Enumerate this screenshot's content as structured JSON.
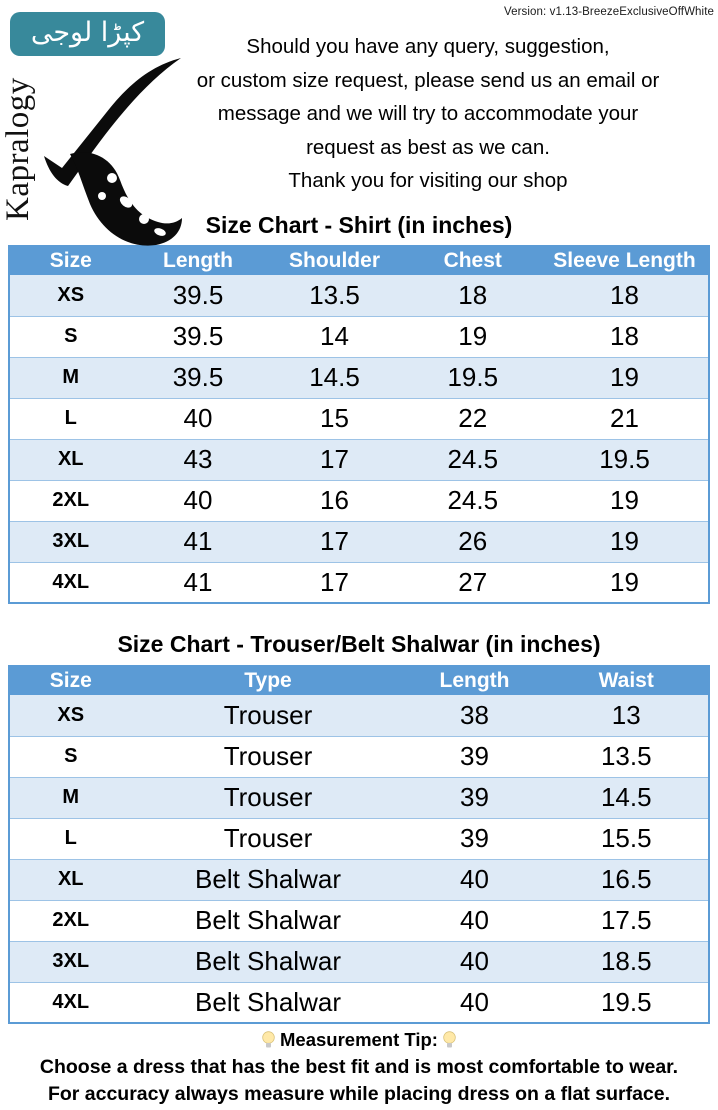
{
  "badge": {
    "urdu_text": "کپڑا لوجی"
  },
  "version_text": "Version: v1.13-BreezeExclusiveOffWhite",
  "brand": {
    "name": "Kapralogy"
  },
  "intro_lines": [
    "Should you have any query, suggestion,",
    "or custom size request, please send us an email or",
    "message and we will try to accommodate your",
    "request as best as we can.",
    "Thank you for visiting our shop"
  ],
  "shirt_chart": {
    "title": "Size Chart - Shirt (in inches)",
    "columns": [
      "Size",
      "Length",
      "Shoulder",
      "Chest",
      "Sleeve Length"
    ],
    "rows": [
      [
        "XS",
        "39.5",
        "13.5",
        "18",
        "18"
      ],
      [
        "S",
        "39.5",
        "14",
        "19",
        "18"
      ],
      [
        "M",
        "39.5",
        "14.5",
        "19.5",
        "19"
      ],
      [
        "L",
        "40",
        "15",
        "22",
        "21"
      ],
      [
        "XL",
        "43",
        "17",
        "24.5",
        "19.5"
      ],
      [
        "2XL",
        "40",
        "16",
        "24.5",
        "19"
      ],
      [
        "3XL",
        "41",
        "17",
        "26",
        "19"
      ],
      [
        "4XL",
        "41",
        "17",
        "27",
        "19"
      ]
    ]
  },
  "trouser_chart": {
    "title": "Size Chart - Trouser/Belt Shalwar (in inches)",
    "columns": [
      "Size",
      "Type",
      "Length",
      "Waist"
    ],
    "rows": [
      [
        "XS",
        "Trouser",
        "38",
        "13"
      ],
      [
        "S",
        "Trouser",
        "39",
        "13.5"
      ],
      [
        "M",
        "Trouser",
        "39",
        "14.5"
      ],
      [
        "L",
        "Trouser",
        "39",
        "15.5"
      ],
      [
        "XL",
        "Belt Shalwar",
        "40",
        "16.5"
      ],
      [
        "2XL",
        "Belt Shalwar",
        "40",
        "17.5"
      ],
      [
        "3XL",
        "Belt Shalwar",
        "40",
        "18.5"
      ],
      [
        "4XL",
        "Belt Shalwar",
        "40",
        "19.5"
      ]
    ]
  },
  "tip": {
    "heading": "Measurement Tip:",
    "lines": [
      "Choose a dress that has the best fit and is most comfortable to wear.",
      "For accuracy always measure while placing dress on a flat surface."
    ]
  },
  "icons": {
    "tip_left": "lightbulb-icon",
    "tip_right": "lightbulb-icon",
    "logo": "kapralogy-k-monogram"
  },
  "colors": {
    "table_header_blue": "#5B9BD5",
    "table_row_alt_blue": "#DEEAF6",
    "table_divider_blue": "#9DC3E6",
    "badge_teal": "#38899B",
    "text": "#000000",
    "background": "#FFFFFF"
  }
}
